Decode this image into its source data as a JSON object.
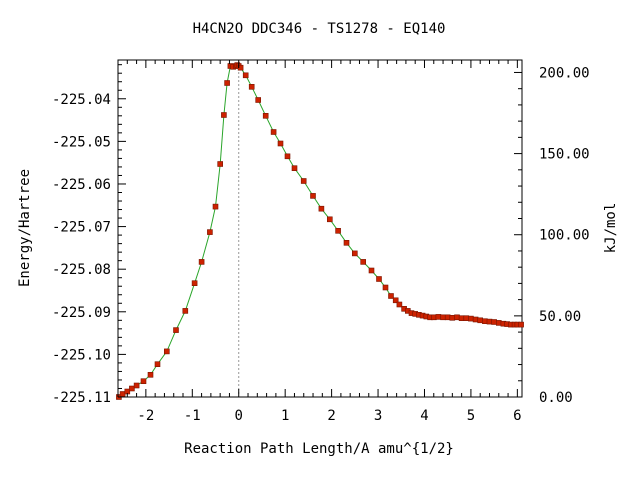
{
  "chart_data": {
    "type": "line",
    "title": "H4CN2O   DDC346 - TS1278 - EQ140",
    "xlabel": "Reaction Path Length/A amu^{1/2}",
    "ylabel": "Energy/Hartree",
    "y2label": "kJ/mol",
    "xlim": [
      -2.6,
      6.1
    ],
    "ylim": [
      -225.11,
      -225.0309
    ],
    "x_ticks": [
      -2,
      -1,
      0,
      1,
      2,
      3,
      4,
      5,
      6
    ],
    "x_tick_labels": [
      "-2",
      "-1",
      "0",
      "1",
      "2",
      "3",
      "4",
      "5",
      "6"
    ],
    "y_ticks": [
      -225.04,
      -225.05,
      -225.06,
      -225.07,
      -225.08,
      -225.09,
      -225.1,
      -225.11
    ],
    "y_tick_labels": [
      "-225.04",
      "-225.05",
      "-225.06",
      "-225.07",
      "-225.08",
      "-225.09",
      "-225.10",
      "-225.11"
    ],
    "y2_ticks": [
      0,
      50,
      100,
      150,
      200
    ],
    "y2_tick_labels": [
      "0.00",
      "50.00",
      "100.00",
      "150.00",
      "200.00"
    ],
    "ts_x": 0.0,
    "grid": false,
    "legend": "none",
    "colors": {
      "line": "#2aa52a",
      "marker": "#cc2200",
      "ts_line": "#999999"
    },
    "series": [
      {
        "x": [
          -2.58,
          -2.5,
          -2.4,
          -2.3,
          -2.2,
          -2.05,
          -1.9,
          -1.75,
          -1.55,
          -1.35,
          -1.15,
          -0.95,
          -0.8,
          -0.62,
          -0.5,
          -0.4,
          -0.32,
          -0.25,
          -0.18,
          -0.12,
          -0.06,
          -0.03,
          0.0,
          0.04,
          0.15,
          0.28,
          0.42,
          0.58,
          0.75,
          0.9,
          1.05,
          1.2,
          1.4,
          1.6,
          1.78,
          1.96,
          2.14,
          2.32,
          2.5,
          2.68,
          2.86,
          3.02,
          3.16,
          3.28,
          3.38,
          3.46,
          3.56,
          3.64,
          3.72,
          3.8,
          3.88,
          3.96,
          4.04,
          4.12,
          4.2,
          4.3,
          4.4,
          4.5,
          4.6,
          4.7,
          4.8,
          4.9,
          5.0,
          5.1,
          5.2,
          5.3,
          5.4,
          5.5,
          5.6,
          5.7,
          5.78,
          5.86,
          5.94,
          6.0,
          6.08
        ],
        "y": [
          -225.11,
          -225.1093,
          -225.1087,
          -225.108,
          -225.1073,
          -225.1063,
          -225.1048,
          -225.1023,
          -225.0993,
          -225.0943,
          -225.0898,
          -225.0833,
          -225.0783,
          -225.0713,
          -225.0653,
          -225.0553,
          -225.0438,
          -225.0363,
          -225.0323,
          -225.0325,
          -225.0323,
          -225.0321,
          -225.0323,
          -225.0327,
          -225.0345,
          -225.0372,
          -225.0403,
          -225.044,
          -225.0478,
          -225.0505,
          -225.0535,
          -225.0563,
          -225.0593,
          -225.0628,
          -225.0658,
          -225.0683,
          -225.071,
          -225.0738,
          -225.0763,
          -225.0783,
          -225.0803,
          -225.0823,
          -225.0843,
          -225.0863,
          -225.0873,
          -225.0883,
          -225.0893,
          -225.0898,
          -225.0903,
          -225.0905,
          -225.0907,
          -225.0909,
          -225.0911,
          -225.0913,
          -225.0913,
          -225.0912,
          -225.0913,
          -225.0913,
          -225.0914,
          -225.0913,
          -225.0915,
          -225.0915,
          -225.0916,
          -225.0918,
          -225.092,
          -225.0922,
          -225.0923,
          -225.0924,
          -225.0926,
          -225.0928,
          -225.0929,
          -225.093,
          -225.093,
          -225.093,
          -225.093
        ]
      }
    ]
  }
}
